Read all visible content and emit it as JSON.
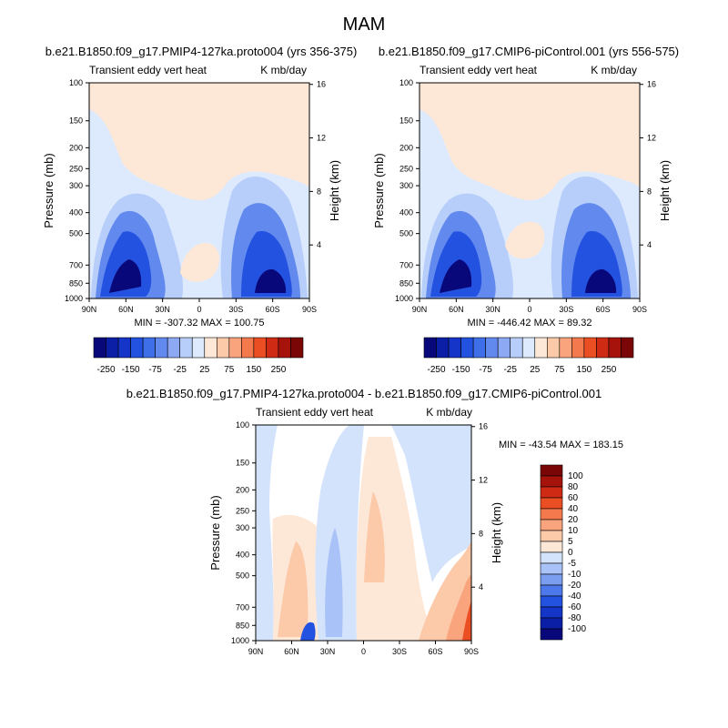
{
  "page_title": "MAM",
  "chart_data": [
    {
      "type": "heatmap",
      "title": "b.e21.B1850.f09_g17.PMIP4-127ka.proto004 (yrs 356-375)",
      "left_subtitle": "Transient eddy vert heat",
      "right_subtitle": "K mb/day",
      "ylabel": "Pressure (mb)",
      "ylabel_right": "Height (km)",
      "x_ticks": [
        "90N",
        "60N",
        "30N",
        "0",
        "30S",
        "60S",
        "90S"
      ],
      "y_ticks": [
        "100",
        "150",
        "200",
        "250",
        "300",
        "400",
        "500",
        "700",
        "850",
        "1000"
      ],
      "y_ticks_right": [
        "16",
        "12",
        "8",
        "4"
      ],
      "stats": "MIN = -307.32   MAX = 100.75",
      "min": -307.32,
      "max": 100.75,
      "colorbar": {
        "levels": [
          -250,
          -200,
          -150,
          -100,
          -75,
          -50,
          -25,
          -10,
          10,
          25,
          50,
          75,
          100,
          150,
          200,
          250
        ],
        "labels": [
          "-250",
          "-150",
          "-75",
          "-25",
          "25",
          "75",
          "150",
          "250"
        ],
        "colors": [
          "#08087a",
          "#0b1fa6",
          "#1534c8",
          "#2452e0",
          "#3f6fe8",
          "#6189ee",
          "#8da9f4",
          "#b7cdfa",
          "#ddeafd",
          "#fde8d8",
          "#fcc9a9",
          "#f9a47c",
          "#f47a4d",
          "#eb4e23",
          "#cf2a14",
          "#a6130a",
          "#7a0606"
        ]
      }
    },
    {
      "type": "heatmap",
      "title": "b.e21.B1850.f09_g17.CMIP6-piControl.001 (yrs 556-575)",
      "left_subtitle": "Transient eddy vert heat",
      "right_subtitle": "K mb/day",
      "ylabel": "Pressure (mb)",
      "ylabel_right": "Height (km)",
      "x_ticks": [
        "90N",
        "60N",
        "30N",
        "0",
        "30S",
        "60S",
        "90S"
      ],
      "y_ticks": [
        "100",
        "150",
        "200",
        "250",
        "300",
        "400",
        "500",
        "700",
        "850",
        "1000"
      ],
      "y_ticks_right": [
        "16",
        "12",
        "8",
        "4"
      ],
      "stats": "MIN = -446.42   MAX =  89.32",
      "min": -446.42,
      "max": 89.32
    },
    {
      "type": "heatmap",
      "title": "b.e21.B1850.f09_g17.PMIP4-127ka.proto004 - b.e21.B1850.f09_g17.CMIP6-piControl.001",
      "left_subtitle": "Transient eddy vert heat",
      "right_subtitle": "K mb/day",
      "ylabel": "Pressure (mb)",
      "ylabel_right": "Height (km)",
      "x_ticks": [
        "90N",
        "60N",
        "30N",
        "0",
        "30S",
        "60S",
        "90S"
      ],
      "y_ticks": [
        "100",
        "150",
        "200",
        "250",
        "300",
        "400",
        "500",
        "700",
        "850",
        "1000"
      ],
      "y_ticks_right": [
        "16",
        "12",
        "8",
        "4"
      ],
      "stats": "MIN = -43.54   MAX = 183.15",
      "min": -43.54,
      "max": 183.15,
      "colorbar": {
        "levels": [
          -100,
          -80,
          -60,
          -40,
          -20,
          -10,
          -5,
          0,
          5,
          10,
          20,
          40,
          60,
          80,
          100
        ],
        "labels": [
          "100",
          "80",
          "60",
          "40",
          "20",
          "10",
          "5",
          "0",
          "-5",
          "-10",
          "-20",
          "-40",
          "-60",
          "-80",
          "-100"
        ],
        "colors": [
          "#08087a",
          "#0b1fa6",
          "#1534c8",
          "#2452e0",
          "#4c78ea",
          "#7b9ef1",
          "#a9c3f8",
          "#d3e3fb",
          "#fde8d8",
          "#fcc9a9",
          "#f9a47c",
          "#f47a4d",
          "#eb4e23",
          "#cf2a14",
          "#a6130a",
          "#7a0606"
        ]
      }
    }
  ]
}
